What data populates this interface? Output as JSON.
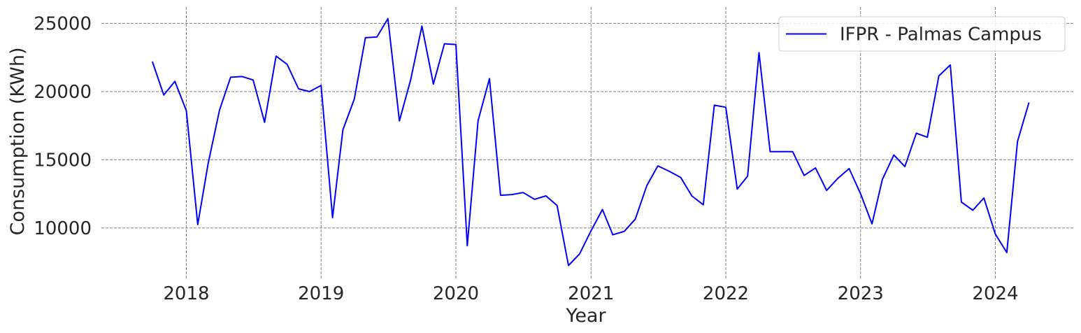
{
  "chart_data": {
    "type": "line",
    "xlabel": "Year",
    "ylabel": "Consumption (KWh)",
    "x_ticks": [
      "2018",
      "2019",
      "2020",
      "2021",
      "2022",
      "2023",
      "2024"
    ],
    "y_ticks": [
      10000,
      15000,
      20000,
      25000
    ],
    "xlim": [
      "2017-05-16",
      "2024-08-01"
    ],
    "ylim": [
      6300,
      26200
    ],
    "grid": true,
    "legend": "top-right",
    "series": [
      {
        "name": "IFPR - Palmas Campus",
        "color": "#0000ff",
        "points": [
          [
            "2017-10-01",
            22200
          ],
          [
            "2017-11-01",
            19750
          ],
          [
            "2017-12-01",
            20750
          ],
          [
            "2018-01-01",
            18600
          ],
          [
            "2018-02-01",
            10250
          ],
          [
            "2018-03-01",
            14700
          ],
          [
            "2018-04-01",
            18650
          ],
          [
            "2018-05-01",
            21050
          ],
          [
            "2018-06-01",
            21100
          ],
          [
            "2018-07-01",
            20850
          ],
          [
            "2018-08-01",
            17750
          ],
          [
            "2018-09-01",
            22600
          ],
          [
            "2018-10-01",
            22000
          ],
          [
            "2018-11-01",
            20200
          ],
          [
            "2018-12-01",
            20000
          ],
          [
            "2019-01-01",
            20450
          ],
          [
            "2019-02-01",
            10750
          ],
          [
            "2019-03-01",
            17200
          ],
          [
            "2019-04-01",
            19450
          ],
          [
            "2019-05-01",
            23950
          ],
          [
            "2019-06-01",
            24000
          ],
          [
            "2019-07-01",
            25350
          ],
          [
            "2019-08-01",
            17850
          ],
          [
            "2019-09-01",
            20900
          ],
          [
            "2019-10-01",
            24800
          ],
          [
            "2019-11-01",
            20550
          ],
          [
            "2019-12-01",
            23500
          ],
          [
            "2020-01-01",
            23450
          ],
          [
            "2020-02-01",
            8700
          ],
          [
            "2020-03-01",
            17850
          ],
          [
            "2020-04-01",
            20950
          ],
          [
            "2020-05-01",
            12400
          ],
          [
            "2020-06-01",
            12450
          ],
          [
            "2020-07-01",
            12600
          ],
          [
            "2020-08-01",
            12100
          ],
          [
            "2020-09-01",
            12350
          ],
          [
            "2020-10-01",
            11650
          ],
          [
            "2020-11-01",
            7250
          ],
          [
            "2020-12-01",
            8100
          ],
          [
            "2021-01-01",
            9800
          ],
          [
            "2021-02-01",
            11350
          ],
          [
            "2021-03-01",
            9500
          ],
          [
            "2021-04-01",
            9750
          ],
          [
            "2021-05-01",
            10650
          ],
          [
            "2021-06-01",
            13100
          ],
          [
            "2021-07-01",
            14550
          ],
          [
            "2021-08-01",
            14150
          ],
          [
            "2021-09-01",
            13700
          ],
          [
            "2021-10-01",
            12350
          ],
          [
            "2021-11-01",
            11700
          ],
          [
            "2021-12-01",
            19000
          ],
          [
            "2022-01-01",
            18850
          ],
          [
            "2022-02-01",
            12850
          ],
          [
            "2022-03-01",
            13800
          ],
          [
            "2022-04-01",
            22850
          ],
          [
            "2022-05-01",
            15600
          ],
          [
            "2022-06-01",
            15600
          ],
          [
            "2022-07-01",
            15600
          ],
          [
            "2022-08-01",
            13850
          ],
          [
            "2022-09-01",
            14400
          ],
          [
            "2022-10-01",
            12750
          ],
          [
            "2022-11-01",
            13650
          ],
          [
            "2022-12-01",
            14350
          ],
          [
            "2023-01-01",
            12500
          ],
          [
            "2023-02-01",
            10300
          ],
          [
            "2023-03-01",
            13550
          ],
          [
            "2023-04-01",
            15350
          ],
          [
            "2023-05-01",
            14500
          ],
          [
            "2023-06-01",
            16950
          ],
          [
            "2023-07-01",
            16650
          ],
          [
            "2023-08-01",
            21150
          ],
          [
            "2023-09-01",
            21950
          ],
          [
            "2023-10-01",
            11900
          ],
          [
            "2023-11-01",
            11300
          ],
          [
            "2023-12-01",
            12200
          ],
          [
            "2024-01-01",
            9550
          ],
          [
            "2024-02-01",
            8200
          ],
          [
            "2024-03-01",
            16350
          ],
          [
            "2024-04-01",
            19200
          ]
        ]
      }
    ]
  }
}
